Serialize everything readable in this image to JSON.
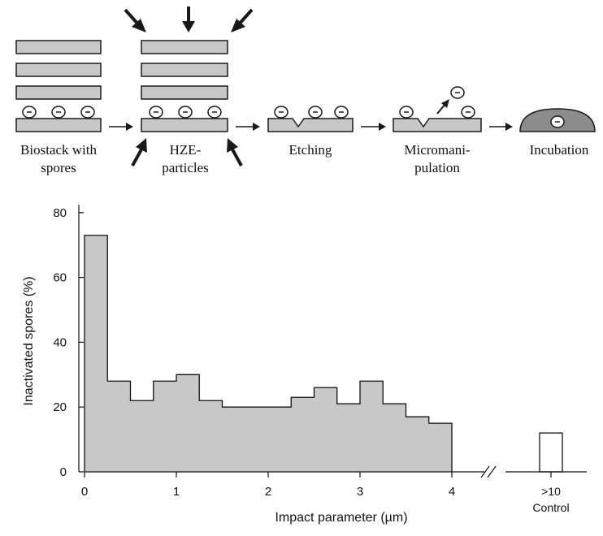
{
  "diagram": {
    "steps": [
      {
        "line1": "Biostack with",
        "line2": "spores"
      },
      {
        "line1": "HZE-",
        "line2": "particles"
      },
      {
        "line1": "Etching",
        "line2": ""
      },
      {
        "line1": "Micromani-",
        "line2": "pulation"
      },
      {
        "line1": "Incubation",
        "line2": ""
      }
    ],
    "colors": {
      "layer": "#c8c8c8",
      "outline": "#1a1a1a",
      "dome": "#8c8c8c"
    }
  },
  "chart_data": {
    "type": "bar",
    "xlabel": "Impact parameter (µm)",
    "ylabel": "Inactivated spores (%)",
    "ylim": [
      0,
      80
    ],
    "yticks": [
      "0",
      "20",
      "40",
      "60",
      "80"
    ],
    "xticks": [
      "0",
      "1",
      "2",
      "3",
      "4"
    ],
    "bin_width": 0.25,
    "bins_start": [
      0,
      0.25,
      0.5,
      0.75,
      1.0,
      1.25,
      1.5,
      1.75,
      2.0,
      2.25,
      2.5,
      2.75,
      3.0,
      3.25,
      3.5,
      3.75
    ],
    "values": [
      73,
      28,
      22,
      28,
      30,
      22,
      20,
      20,
      20,
      23,
      26,
      21,
      28,
      21,
      17,
      15
    ],
    "control": {
      "label_line1": ">10",
      "label_line2": "Control",
      "value": 12
    },
    "fill_color": "#c8c8c8",
    "control_fill": "#ffffff"
  }
}
